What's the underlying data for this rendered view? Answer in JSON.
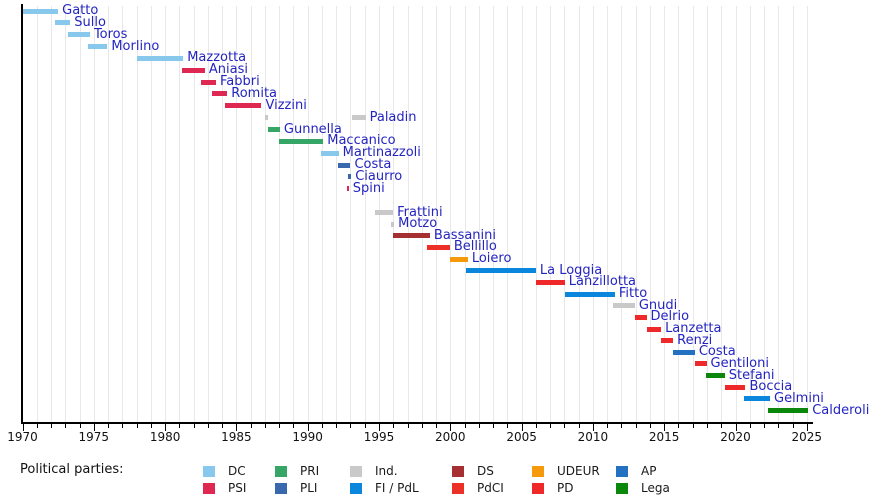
{
  "chart_data": {
    "type": "timeline",
    "title": "",
    "description": "Timeline of Italian ministers by term with political party colors, 1970-2025",
    "x_axis": {
      "start": 1970,
      "end": 2025,
      "major_tick_interval": 5,
      "minor_tick_interval": 1,
      "tick_labels": [
        "1970",
        "1975",
        "1980",
        "1985",
        "1990",
        "1995",
        "2000",
        "2005",
        "2010",
        "2015",
        "2020",
        "2025"
      ],
      "grid": "vertical-light-gray-yearly"
    },
    "name_label_color": "#2424C0",
    "parties": {
      "DC": {
        "label": "DC",
        "color": "#88C8EC"
      },
      "PSI": {
        "label": "PSI",
        "color": "#DE2852"
      },
      "PRI": {
        "label": "PRI",
        "color": "#35A665"
      },
      "PLI": {
        "label": "PLI",
        "color": "#3A68AE"
      },
      "Ind": {
        "label": "Ind.",
        "color": "#C9C9C9"
      },
      "FIPdL": {
        "label": "FI / PdL",
        "color": "#0A87DC"
      },
      "DS": {
        "label": "DS",
        "color": "#A52F31"
      },
      "PdCI": {
        "label": "PdCI",
        "color": "#EC2F27"
      },
      "UDEUR": {
        "label": "UDEUR",
        "color": "#F59A0A"
      },
      "PD": {
        "label": "PD",
        "color": "#EF2929"
      },
      "AP": {
        "label": "AP",
        "color": "#2471C2"
      },
      "Lega": {
        "label": "Lega",
        "color": "#0B870B"
      }
    },
    "ministers": [
      {
        "name": "Gatto",
        "party": "DC",
        "terms": [
          [
            1970.02,
            1972.5
          ]
        ]
      },
      {
        "name": "Sullo",
        "party": "DC",
        "terms": [
          [
            1972.3,
            1973.35
          ]
        ]
      },
      {
        "name": "Toros",
        "party": "DC",
        "terms": [
          [
            1973.2,
            1974.73
          ]
        ]
      },
      {
        "name": "Morlino",
        "party": "DC",
        "terms": [
          [
            1974.6,
            1975.95
          ]
        ]
      },
      {
        "name": "Mazzotta",
        "party": "DC",
        "terms": [
          [
            1978.0,
            1981.27
          ]
        ]
      },
      {
        "name": "Aniasi",
        "party": "PSI",
        "terms": [
          [
            1981.16,
            1982.79
          ]
        ]
      },
      {
        "name": "Fabbri",
        "party": "PSI",
        "terms": [
          [
            1982.52,
            1983.57
          ]
        ]
      },
      {
        "name": "Romita",
        "party": "PSI",
        "terms": [
          [
            1983.27,
            1984.36
          ]
        ]
      },
      {
        "name": "Vizzini",
        "party": "PSI",
        "terms": [
          [
            1984.2,
            1986.76
          ]
        ]
      },
      {
        "name": "Paladin",
        "party": "Ind",
        "terms": [
          [
            1986.98,
            1987.2
          ],
          [
            1993.08,
            1994.06
          ]
        ]
      },
      {
        "name": "Gunnella",
        "party": "PRI",
        "terms": [
          [
            1987.23,
            1988.05
          ]
        ]
      },
      {
        "name": "Maccanico",
        "party": "PRI",
        "terms": [
          [
            1987.98,
            1991.09
          ]
        ]
      },
      {
        "name": "Martinazzoli",
        "party": "DC",
        "terms": [
          [
            1990.91,
            1992.17
          ]
        ]
      },
      {
        "name": "Costa",
        "party": "PLI",
        "terms": [
          [
            1992.14,
            1993.0
          ]
        ]
      },
      {
        "name": "Ciaurro",
        "party": "PLI",
        "terms": [
          [
            1992.8,
            1993.05
          ]
        ]
      },
      {
        "name": "Spini",
        "party": "PSI",
        "terms": [
          [
            1992.73,
            1992.88
          ]
        ]
      },
      {
        "name": "Frattini",
        "party": "Ind",
        "terms": [
          [
            1994.72,
            1995.99
          ]
        ]
      },
      {
        "name": "Motzo",
        "party": "Ind",
        "terms": [
          [
            1995.82,
            1996.06
          ]
        ]
      },
      {
        "name": "Bassanini",
        "party": "DS",
        "terms": [
          [
            1995.99,
            1998.57
          ]
        ]
      },
      {
        "name": "Bellillo",
        "party": "PdCI",
        "terms": [
          [
            1998.36,
            1999.97
          ]
        ]
      },
      {
        "name": "Loiero",
        "party": "UDEUR",
        "terms": [
          [
            1999.97,
            2001.23
          ]
        ]
      },
      {
        "name": "La Loggia",
        "party": "FIPdL",
        "terms": [
          [
            2001.09,
            2006.0
          ]
        ]
      },
      {
        "name": "Lanzillotta",
        "party": "PD",
        "terms": [
          [
            2006.0,
            2008.03
          ]
        ]
      },
      {
        "name": "Fitto",
        "party": "FIPdL",
        "terms": [
          [
            2008.03,
            2011.54
          ]
        ]
      },
      {
        "name": "Gnudi",
        "party": "Ind",
        "terms": [
          [
            2011.42,
            2012.94
          ]
        ]
      },
      {
        "name": "Delrio",
        "party": "PD",
        "terms": [
          [
            2012.94,
            2013.76
          ]
        ]
      },
      {
        "name": "Lanzetta",
        "party": "PD",
        "terms": [
          [
            2013.76,
            2014.78
          ]
        ]
      },
      {
        "name": "Renzi",
        "party": "PD",
        "terms": [
          [
            2014.78,
            2015.63
          ]
        ]
      },
      {
        "name": "Costa",
        "party": "AP",
        "terms": [
          [
            2015.63,
            2017.15
          ]
        ]
      },
      {
        "name": "Gentiloni",
        "party": "PD",
        "terms": [
          [
            2017.15,
            2017.97
          ]
        ]
      },
      {
        "name": "Stefani",
        "party": "Lega",
        "terms": [
          [
            2017.93,
            2019.25
          ]
        ]
      },
      {
        "name": "Boccia",
        "party": "PD",
        "terms": [
          [
            2019.25,
            2020.7
          ]
        ]
      },
      {
        "name": "Gelmini",
        "party": "FIPdL",
        "terms": [
          [
            2020.62,
            2022.42
          ]
        ]
      },
      {
        "name": "Calderoli",
        "party": "Lega",
        "terms": [
          [
            2022.3,
            2025.1
          ]
        ]
      }
    ],
    "legend": {
      "title": "Political parties:",
      "columns": [
        [
          "DC",
          "PSI"
        ],
        [
          "PRI",
          "PLI"
        ],
        [
          "Ind",
          "FIPdL"
        ],
        [
          "DS",
          "PdCI"
        ],
        [
          "UDEUR",
          "PD"
        ],
        [
          "AP",
          "Lega"
        ]
      ],
      "position": "bottom"
    }
  }
}
